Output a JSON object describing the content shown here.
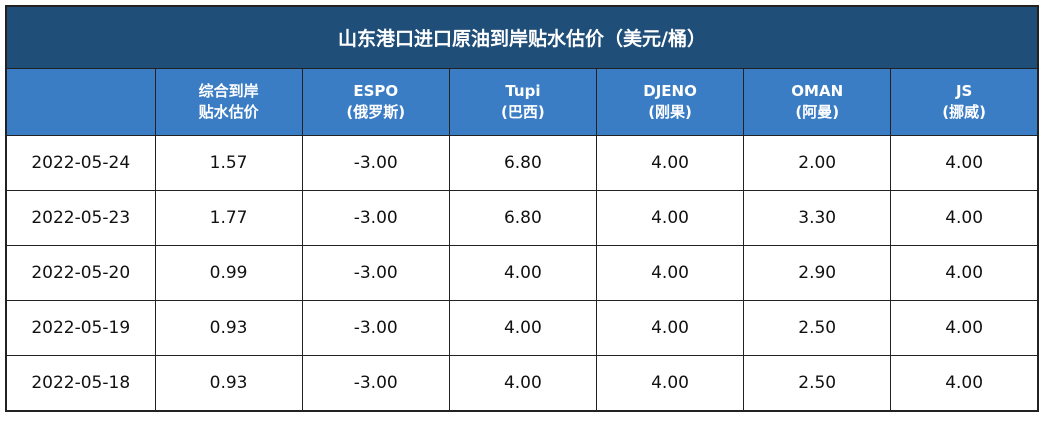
{
  "title": "山东港口进口原油到岸贴水估价（美元/桶）",
  "table": {
    "columns": [
      [
        "综合到岸",
        "贴水估价"
      ],
      [
        "ESPO",
        "(俄罗斯)"
      ],
      [
        "Tupi",
        "(巴西)"
      ],
      [
        "DJENO",
        "(刚果)"
      ],
      [
        "OMAN",
        "(阿曼)"
      ],
      [
        "JS",
        "(挪威)"
      ]
    ],
    "rows": [
      [
        "2022-05-24",
        "1.57",
        "-3.00",
        "6.80",
        "4.00",
        "2.00",
        "4.00"
      ],
      [
        "2022-05-23",
        "1.77",
        "-3.00",
        "6.80",
        "4.00",
        "3.30",
        "4.00"
      ],
      [
        "2022-05-20",
        "0.99",
        "-3.00",
        "4.00",
        "4.00",
        "2.90",
        "4.00"
      ],
      [
        "2022-05-19",
        "0.93",
        "-3.00",
        "4.00",
        "4.00",
        "2.50",
        "4.00"
      ],
      [
        "2022-05-18",
        "0.93",
        "-3.00",
        "4.00",
        "4.00",
        "2.50",
        "4.00"
      ]
    ]
  }
}
